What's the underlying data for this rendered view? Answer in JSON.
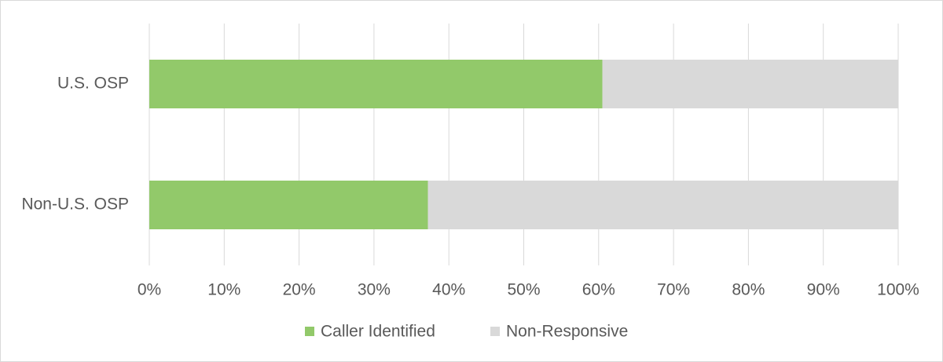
{
  "chart_data": {
    "type": "stacked-bar-horizontal",
    "categories": [
      "U.S. OSP",
      "Non-U.S. OSP"
    ],
    "series": [
      {
        "name": "Caller Identified",
        "color": "#92c96a",
        "values": [
          60.5,
          37.2
        ]
      },
      {
        "name": "Non-Responsive",
        "color": "#d9d9d9",
        "values": [
          39.5,
          62.8
        ]
      }
    ],
    "xlim": [
      0,
      100
    ],
    "xticks": [
      {
        "value": 0,
        "label": "0%"
      },
      {
        "value": 10,
        "label": "10%"
      },
      {
        "value": 20,
        "label": "20%"
      },
      {
        "value": 30,
        "label": "30%"
      },
      {
        "value": 40,
        "label": "40%"
      },
      {
        "value": 50,
        "label": "50%"
      },
      {
        "value": 60,
        "label": "60%"
      },
      {
        "value": 70,
        "label": "70%"
      },
      {
        "value": 80,
        "label": "80%"
      },
      {
        "value": 90,
        "label": "90%"
      },
      {
        "value": 100,
        "label": "100%"
      }
    ],
    "grid": true,
    "legend": "bottom"
  }
}
